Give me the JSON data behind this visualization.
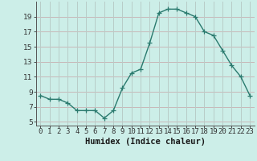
{
  "x": [
    0,
    1,
    2,
    3,
    4,
    5,
    6,
    7,
    8,
    9,
    10,
    11,
    12,
    13,
    14,
    15,
    16,
    17,
    18,
    19,
    20,
    21,
    22,
    23
  ],
  "y": [
    8.5,
    8.0,
    8.0,
    7.5,
    6.5,
    6.5,
    6.5,
    5.5,
    6.5,
    9.5,
    11.5,
    12.0,
    15.5,
    19.5,
    20.0,
    20.0,
    19.5,
    19.0,
    17.0,
    16.5,
    14.5,
    12.5,
    11.0,
    8.5
  ],
  "line_color": "#2a7a6e",
  "marker": "+",
  "marker_size": 4,
  "bg_color": "#cceee8",
  "grid_color_h": "#c8b8b8",
  "grid_color_v": "#b8ccc8",
  "xlabel": "Humidex (Indice chaleur)",
  "xlabel_fontsize": 7.5,
  "ylabel_ticks": [
    5,
    7,
    9,
    11,
    13,
    15,
    17,
    19
  ],
  "ylim": [
    4.5,
    21.0
  ],
  "xlim": [
    -0.5,
    23.5
  ],
  "xtick_labels": [
    "0",
    "1",
    "2",
    "3",
    "4",
    "5",
    "6",
    "7",
    "8",
    "9",
    "10",
    "11",
    "12",
    "13",
    "14",
    "15",
    "16",
    "17",
    "18",
    "19",
    "20",
    "21",
    "22",
    "23"
  ],
  "tick_fontsize": 6.5,
  "line_width": 1.0,
  "marker_edge_width": 0.9
}
